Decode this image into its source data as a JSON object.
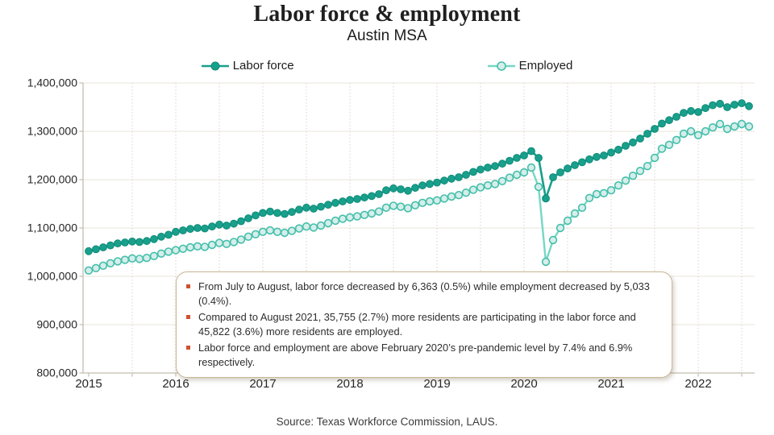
{
  "header": {
    "title": "Labor force & employment",
    "subtitle": "Austin MSA"
  },
  "legend": {
    "items": [
      {
        "label": "Labor force"
      },
      {
        "label": "Employed"
      }
    ]
  },
  "annotation_box": {
    "bullets": [
      "From July to August, labor force decreased by 6,363 (0.5%) while employment decreased by 5,033 (0.4%).",
      "Compared to August 2021, 35,755 (2.7%) more residents are participating in the labor force and 45,822 (3.6%) more residents are employed.",
      "Labor force and employment are above February 2020’s pre-pandemic level by 7.4% and 6.9% respectively."
    ]
  },
  "source": "Source: Texas Workforce Commission, LAUS.",
  "colors": {
    "labor_force": "#18a08c",
    "labor_force_marker_stroke": "#0e8a78",
    "employed_line": "#76d7c4",
    "employed_marker_fill": "#d6eeea",
    "employed_marker_stroke": "#45bfab",
    "bullet": "#cf5230",
    "box_border": "#c9b795",
    "grid": "#e9e5db",
    "grid_dotted": "#d9d4c7",
    "axis": "#c2bdb0",
    "text": "#262626"
  },
  "chart_data": {
    "type": "line",
    "title": "Labor force & employment",
    "subtitle": "Austin MSA",
    "x_unit": "month",
    "x_start": "2015-01",
    "x_end": "2022-08",
    "n_points": 92,
    "ylim": [
      800000,
      1400000
    ],
    "grid": {
      "horizontal": "solid",
      "vertical": "dotted-every-6-months"
    },
    "legend_position": "top-center",
    "y_ticks": [
      {
        "label": "1,400,000",
        "value": 1400000
      },
      {
        "label": "1,300,000",
        "value": 1300000
      },
      {
        "label": "1,200,000",
        "value": 1200000
      },
      {
        "label": "1,100,000",
        "value": 1100000
      },
      {
        "label": "1,000,000",
        "value": 1000000
      },
      {
        "label": "900,000",
        "value": 900000
      },
      {
        "label": "800,000",
        "value": 800000
      }
    ],
    "x_ticks": [
      {
        "label": "2015",
        "month_index": 0
      },
      {
        "label": "2016",
        "month_index": 12
      },
      {
        "label": "2017",
        "month_index": 24
      },
      {
        "label": "2018",
        "month_index": 36
      },
      {
        "label": "2019",
        "month_index": 48
      },
      {
        "label": "2020",
        "month_index": 60
      },
      {
        "label": "2021",
        "month_index": 72
      },
      {
        "label": "2022",
        "month_index": 84
      }
    ],
    "series": [
      {
        "name": "Labor force",
        "values": [
          1052000,
          1056000,
          1060000,
          1064000,
          1068000,
          1070000,
          1072000,
          1071000,
          1073000,
          1077000,
          1082000,
          1086000,
          1092000,
          1095000,
          1098000,
          1100000,
          1099000,
          1103000,
          1107000,
          1105000,
          1109000,
          1114000,
          1120000,
          1126000,
          1131000,
          1134000,
          1131000,
          1129000,
          1133000,
          1138000,
          1142000,
          1140000,
          1144000,
          1148000,
          1152000,
          1155000,
          1158000,
          1160000,
          1163000,
          1166000,
          1170000,
          1178000,
          1182000,
          1180000,
          1177000,
          1183000,
          1188000,
          1191000,
          1194000,
          1198000,
          1202000,
          1205000,
          1210000,
          1216000,
          1221000,
          1225000,
          1228000,
          1233000,
          1239000,
          1245000,
          1250000,
          1259000,
          1245000,
          1161000,
          1205000,
          1215000,
          1223000,
          1230000,
          1236000,
          1242000,
          1247000,
          1250000,
          1256000,
          1262000,
          1270000,
          1277000,
          1285000,
          1295000,
          1305000,
          1316000,
          1323000,
          1330000,
          1338000,
          1342000,
          1340000,
          1348000,
          1354000,
          1357000,
          1350000,
          1355000,
          1358000,
          1352000
        ]
      },
      {
        "name": "Employed",
        "values": [
          1012000,
          1017000,
          1022000,
          1027000,
          1031000,
          1034000,
          1037000,
          1036000,
          1038000,
          1042000,
          1047000,
          1051000,
          1054000,
          1057000,
          1060000,
          1062000,
          1061000,
          1065000,
          1069000,
          1067000,
          1071000,
          1076000,
          1082000,
          1087000,
          1092000,
          1095000,
          1092000,
          1090000,
          1094000,
          1099000,
          1103000,
          1101000,
          1105000,
          1110000,
          1115000,
          1119000,
          1122000,
          1124000,
          1127000,
          1130000,
          1134000,
          1142000,
          1146000,
          1144000,
          1141000,
          1147000,
          1152000,
          1155000,
          1157000,
          1161000,
          1165000,
          1168000,
          1173000,
          1179000,
          1184000,
          1188000,
          1191000,
          1197000,
          1204000,
          1210000,
          1215000,
          1225000,
          1185000,
          1030000,
          1075000,
          1100000,
          1115000,
          1130000,
          1142000,
          1162000,
          1170000,
          1172000,
          1178000,
          1188000,
          1198000,
          1208000,
          1218000,
          1228000,
          1245000,
          1264000,
          1272000,
          1282000,
          1295000,
          1300000,
          1292000,
          1300000,
          1308000,
          1315000,
          1305000,
          1310000,
          1315000,
          1310000
        ]
      }
    ]
  }
}
